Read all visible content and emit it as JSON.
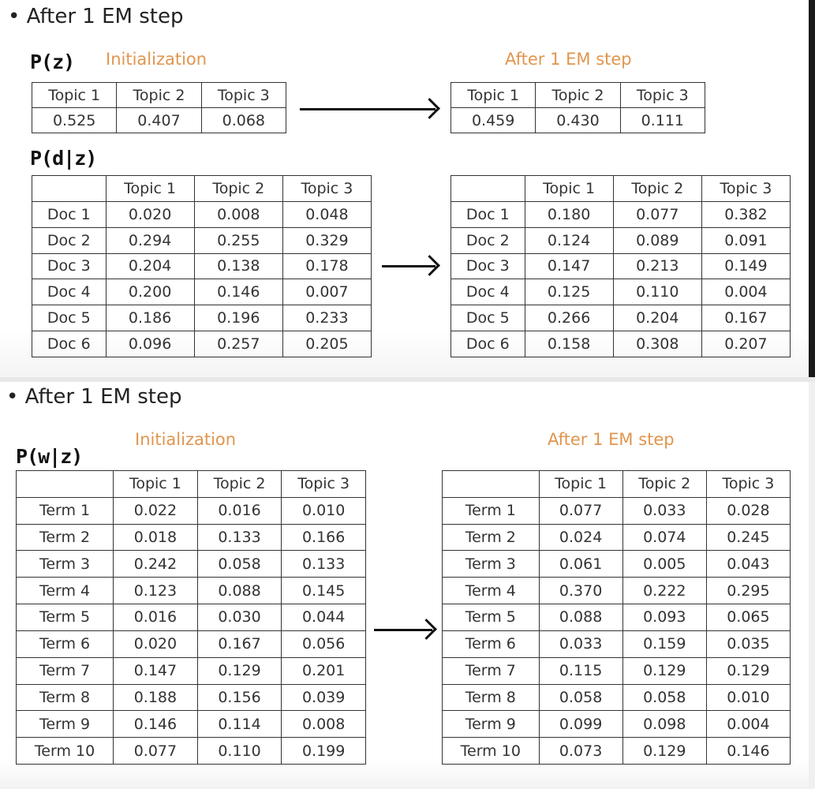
{
  "top": {
    "bullet": "After 1 EM step",
    "pz_label": "P(z)",
    "pdz_label": "P(d|z)",
    "init_label": "Initialization",
    "after_label": "After 1 EM step",
    "pz_init": {
      "headers": [
        "Topic 1",
        "Topic 2",
        "Topic 3"
      ],
      "values": [
        "0.525",
        "0.407",
        "0.068"
      ]
    },
    "pz_after": {
      "headers": [
        "Topic 1",
        "Topic 2",
        "Topic 3"
      ],
      "values": [
        "0.459",
        "0.430",
        "0.111"
      ]
    },
    "pdz_init": {
      "headers": [
        "",
        "Topic 1",
        "Topic 2",
        "Topic 3"
      ],
      "rows": [
        [
          "Doc 1",
          "0.020",
          "0.008",
          "0.048"
        ],
        [
          "Doc 2",
          "0.294",
          "0.255",
          "0.329"
        ],
        [
          "Doc 3",
          "0.204",
          "0.138",
          "0.178"
        ],
        [
          "Doc 4",
          "0.200",
          "0.146",
          "0.007"
        ],
        [
          "Doc 5",
          "0.186",
          "0.196",
          "0.233"
        ],
        [
          "Doc 6",
          "0.096",
          "0.257",
          "0.205"
        ]
      ]
    },
    "pdz_after": {
      "headers": [
        "",
        "Topic 1",
        "Topic 2",
        "Topic 3"
      ],
      "rows": [
        [
          "Doc 1",
          "0.180",
          "0.077",
          "0.382"
        ],
        [
          "Doc 2",
          "0.124",
          "0.089",
          "0.091"
        ],
        [
          "Doc 3",
          "0.147",
          "0.213",
          "0.149"
        ],
        [
          "Doc 4",
          "0.125",
          "0.110",
          "0.004"
        ],
        [
          "Doc 5",
          "0.266",
          "0.204",
          "0.167"
        ],
        [
          "Doc 6",
          "0.158",
          "0.308",
          "0.207"
        ]
      ]
    }
  },
  "bottom": {
    "bullet": "After 1 EM step",
    "pwz_label": "P(w|z)",
    "init_label": "Initialization",
    "after_label": "After 1 EM step",
    "pwz_init": {
      "headers": [
        "",
        "Topic 1",
        "Topic 2",
        "Topic 3"
      ],
      "rows": [
        [
          "Term 1",
          "0.022",
          "0.016",
          "0.010"
        ],
        [
          "Term 2",
          "0.018",
          "0.133",
          "0.166"
        ],
        [
          "Term 3",
          "0.242",
          "0.058",
          "0.133"
        ],
        [
          "Term 4",
          "0.123",
          "0.088",
          "0.145"
        ],
        [
          "Term 5",
          "0.016",
          "0.030",
          "0.044"
        ],
        [
          "Term 6",
          "0.020",
          "0.167",
          "0.056"
        ],
        [
          "Term 7",
          "0.147",
          "0.129",
          "0.201"
        ],
        [
          "Term 8",
          "0.188",
          "0.156",
          "0.039"
        ],
        [
          "Term 9",
          "0.146",
          "0.114",
          "0.008"
        ],
        [
          "Term 10",
          "0.077",
          "0.110",
          "0.199"
        ]
      ]
    },
    "pwz_after": {
      "headers": [
        "",
        "Topic 1",
        "Topic 2",
        "Topic 3"
      ],
      "rows": [
        [
          "Term 1",
          "0.077",
          "0.033",
          "0.028"
        ],
        [
          "Term 2",
          "0.024",
          "0.074",
          "0.245"
        ],
        [
          "Term 3",
          "0.061",
          "0.005",
          "0.043"
        ],
        [
          "Term 4",
          "0.370",
          "0.222",
          "0.295"
        ],
        [
          "Term 5",
          "0.088",
          "0.093",
          "0.065"
        ],
        [
          "Term 6",
          "0.033",
          "0.159",
          "0.035"
        ],
        [
          "Term 7",
          "0.115",
          "0.129",
          "0.129"
        ],
        [
          "Term 8",
          "0.058",
          "0.058",
          "0.010"
        ],
        [
          "Term 9",
          "0.099",
          "0.098",
          "0.004"
        ],
        [
          "Term 10",
          "0.073",
          "0.129",
          "0.146"
        ]
      ]
    }
  }
}
